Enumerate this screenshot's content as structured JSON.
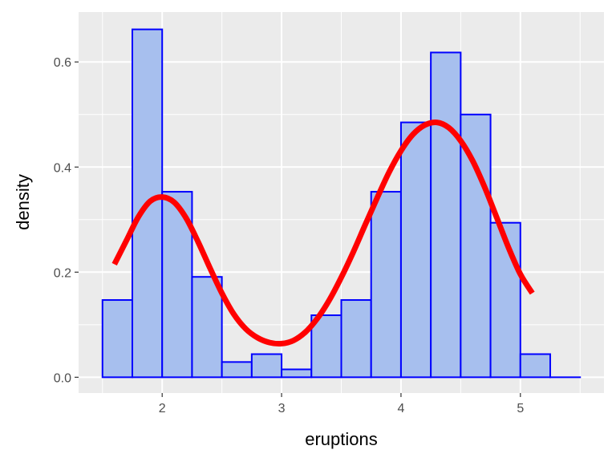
{
  "chart_data": {
    "type": "bar",
    "subtype": "histogram with density curve",
    "xlabel": "eruptions",
    "ylabel": "density",
    "xlim": [
      1.3,
      5.7
    ],
    "ylim": [
      -0.03,
      0.695
    ],
    "x_ticks": [
      2,
      3,
      4,
      5
    ],
    "x_minor_ticks": [
      1.5,
      2.5,
      3.5,
      4.5,
      5.5
    ],
    "y_ticks": [
      0.0,
      0.2,
      0.4,
      0.6
    ],
    "x_tick_labels": [
      "2",
      "3",
      "4",
      "5"
    ],
    "y_tick_labels": [
      "0.0",
      "0.2",
      "0.4",
      "0.6"
    ],
    "bin_edges": [
      1.5,
      1.75,
      2.0,
      2.25,
      2.5,
      2.75,
      3.0,
      3.25,
      3.5,
      3.75,
      4.0,
      4.25,
      4.5,
      4.75,
      5.0,
      5.25,
      5.5
    ],
    "values": [
      0.147,
      0.662,
      0.353,
      0.191,
      0.029,
      0.044,
      0.015,
      0.118,
      0.147,
      0.353,
      0.485,
      0.618,
      0.5,
      0.294,
      0.044,
      0.0
    ],
    "density_curve": {
      "x": [
        1.6,
        1.7,
        1.8,
        1.9,
        2.0,
        2.1,
        2.2,
        2.3,
        2.4,
        2.5,
        2.6,
        2.7,
        2.8,
        2.9,
        3.0,
        3.1,
        3.2,
        3.3,
        3.4,
        3.5,
        3.6,
        3.7,
        3.8,
        3.9,
        4.0,
        4.1,
        4.2,
        4.3,
        4.4,
        4.5,
        4.6,
        4.7,
        4.8,
        4.9,
        5.0,
        5.1
      ],
      "y": [
        0.215,
        0.26,
        0.305,
        0.335,
        0.343,
        0.333,
        0.303,
        0.258,
        0.208,
        0.16,
        0.12,
        0.092,
        0.075,
        0.066,
        0.064,
        0.07,
        0.086,
        0.112,
        0.147,
        0.19,
        0.238,
        0.29,
        0.341,
        0.39,
        0.431,
        0.462,
        0.48,
        0.485,
        0.475,
        0.45,
        0.412,
        0.362,
        0.305,
        0.247,
        0.196,
        0.16
      ]
    },
    "grid": true,
    "colors": {
      "panel_background": "#ebebeb",
      "grid_line": "#ffffff",
      "bar_fill": "#a7bfee",
      "bar_outline": "#0000ff",
      "curve": "#ff0000",
      "tick_text": "#4d4d4d",
      "axis_title": "#000000"
    }
  }
}
